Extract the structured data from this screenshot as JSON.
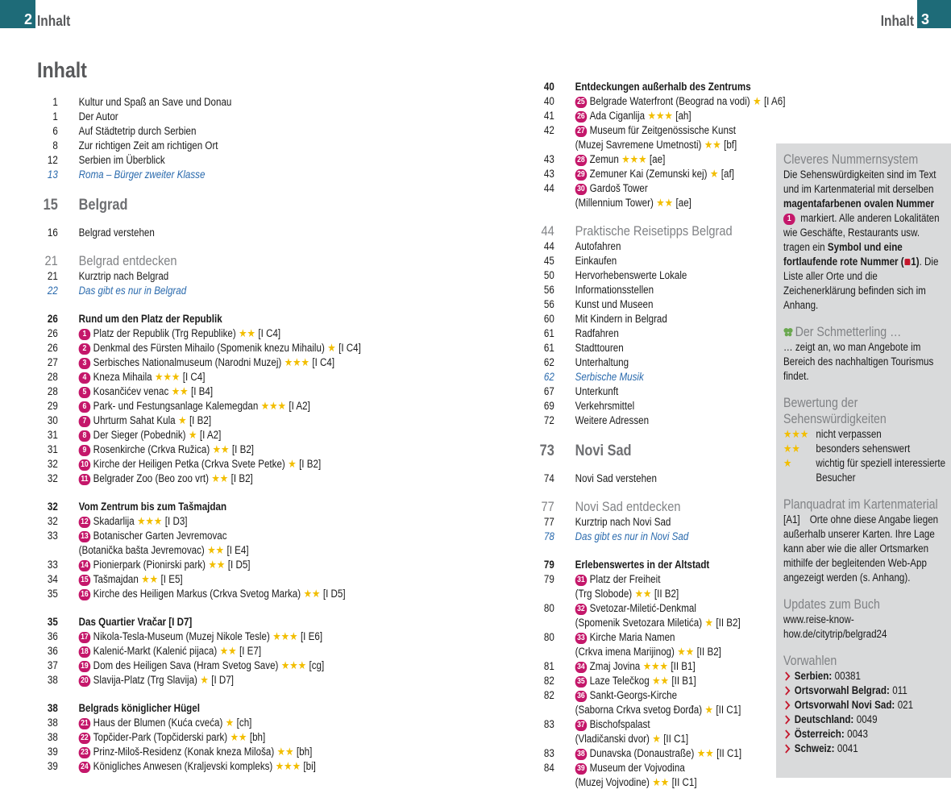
{
  "header": {
    "left": {
      "page": "2",
      "title": "Inhalt"
    },
    "right": {
      "title": "Inhalt",
      "page": "3"
    }
  },
  "toc": {
    "title": "Inhalt",
    "left": [
      {
        "page": "1",
        "text": "Kultur und Spaß an Save und Donau"
      },
      {
        "page": "1",
        "text": "Der Autor"
      },
      {
        "page": "6",
        "text": "Auf Städtetrip durch Serbien"
      },
      {
        "page": "8",
        "text": "Zur richtigen Zeit am richtigen Ort"
      },
      {
        "page": "12",
        "text": "Serbien im Überblick"
      },
      {
        "page": "13",
        "italic": "Roma – Bürger zweiter Klasse"
      },
      {
        "page": "15",
        "h1": "Belgrad"
      },
      {
        "page": "16",
        "text": "Belgrad verstehen"
      },
      {
        "page": "21",
        "h2": "Belgrad entdecken"
      },
      {
        "page": "21",
        "text": "Kurztrip nach Belgrad"
      },
      {
        "page": "22",
        "italic": "Das gibt es nur in Belgrad"
      },
      {
        "page": "26",
        "bold": "Rund um den Platz der Republik"
      },
      {
        "page": "26",
        "num": "1",
        "name": "Platz der Republik (Trg Republike)",
        "stars": "★★",
        "ref": "[I C4]"
      },
      {
        "page": "26",
        "num": "2",
        "name": "Denkmal des Fürsten Mihailo (Spomenik knezu Mihailu)",
        "stars": "★",
        "ref": "[I C4]"
      },
      {
        "page": "27",
        "num": "3",
        "name": "Serbisches Nationalmuseum (Narodni Muzej)",
        "stars": "★★★",
        "ref": "[I C4]"
      },
      {
        "page": "28",
        "num": "4",
        "name": "Kneza Mihaila",
        "stars": "★★★",
        "ref": "[I C4]"
      },
      {
        "page": "28",
        "num": "5",
        "name": "Kosančićev venac",
        "stars": "★★",
        "ref": "[I B4]"
      },
      {
        "page": "29",
        "num": "6",
        "name": "Park- und Festungsanlage Kalemegdan",
        "stars": "★★★",
        "ref": "[I A2]"
      },
      {
        "page": "30",
        "num": "7",
        "name": "Uhrturm Sahat Kula",
        "stars": "★",
        "ref": "[I B2]"
      },
      {
        "page": "31",
        "num": "8",
        "name": "Der Sieger (Pobednik)",
        "stars": "★",
        "ref": "[I A2]"
      },
      {
        "page": "31",
        "num": "9",
        "name": "Rosenkirche (Crkva Ružica)",
        "stars": "★★",
        "ref": "[I B2]"
      },
      {
        "page": "32",
        "num": "10",
        "name": "Kirche der Heiligen Petka (Crkva Svete Petke)",
        "stars": "★",
        "ref": "[I B2]"
      },
      {
        "page": "32",
        "num": "11",
        "name": "Belgrader Zoo (Beo zoo vrt)",
        "stars": "★★",
        "ref": "[I B2]"
      },
      {
        "page": "32",
        "bold": "Vom Zentrum bis zum Tašmajdan"
      },
      {
        "page": "32",
        "num": "12",
        "name": "Skadarlija",
        "stars": "★★★",
        "ref": "[I D3]"
      },
      {
        "page": "33",
        "num": "13",
        "name": "Botanischer Garten Jevremovac",
        "name2": "(Botanička bašta Jevremovac)",
        "stars": "★★",
        "ref": "[I E4]"
      },
      {
        "page": "33",
        "num": "14",
        "name": "Pionierpark (Pionirski park)",
        "stars": "★★",
        "ref": "[I D5]"
      },
      {
        "page": "34",
        "num": "15",
        "name": "Tašmajdan",
        "stars": "★★",
        "ref": "[I E5]"
      },
      {
        "page": "35",
        "num": "16",
        "name": "Kirche des Heiligen Markus (Crkva Svetog Marka)",
        "stars": "★★",
        "ref": "[I D5]"
      },
      {
        "page": "35",
        "bold": "Das Quartier Vračar [I D7]"
      },
      {
        "page": "36",
        "num": "17",
        "name": "Nikola-Tesla-Museum (Muzej Nikole Tesle)",
        "stars": "★★★",
        "ref": "[I E6]"
      },
      {
        "page": "36",
        "num": "18",
        "name": "Kalenić-Markt (Kalenić pijaca)",
        "stars": "★★",
        "ref": "[I E7]"
      },
      {
        "page": "37",
        "num": "19",
        "name": "Dom des Heiligen Sava (Hram Svetog Save)",
        "stars": "★★★",
        "ref": "[cg]"
      },
      {
        "page": "38",
        "num": "20",
        "name": "Slavija-Platz (Trg Slavija)",
        "stars": "★",
        "ref": "[I D7]"
      },
      {
        "page": "38",
        "bold": "Belgrads königlicher Hügel"
      },
      {
        "page": "38",
        "num": "21",
        "name": "Haus der Blumen (Kuća cveća)",
        "stars": "★",
        "ref": "[ch]"
      },
      {
        "page": "38",
        "num": "22",
        "name": "Topčider-Park (Topčiderski park)",
        "stars": "★★",
        "ref": "[bh]"
      },
      {
        "page": "39",
        "num": "23",
        "name": "Prinz-Miloš-Residenz (Konak kneza Miloša)",
        "stars": "★★",
        "ref": "[bh]"
      },
      {
        "page": "39",
        "num": "24",
        "name": "Königliches Anwesen (Kraljevski kompleks)",
        "stars": "★★★",
        "ref": "[bi]"
      }
    ],
    "right": [
      {
        "page": "40",
        "bold": "Entdeckungen außerhalb des Zentrums"
      },
      {
        "page": "40",
        "num": "25",
        "name": "Belgrade Waterfront (Beograd na vodi)",
        "stars": "★",
        "ref": "[I A6]"
      },
      {
        "page": "41",
        "num": "26",
        "name": "Ada Ciganlija",
        "stars": "★★★",
        "ref": "[ah]"
      },
      {
        "page": "42",
        "num": "27",
        "name": "Museum für Zeitgenössische Kunst",
        "name2": "(Muzej Savremene Umetnosti)",
        "stars": "★★",
        "ref": "[bf]"
      },
      {
        "page": "43",
        "num": "28",
        "name": "Zemun",
        "stars": "★★★",
        "ref": "[ae]"
      },
      {
        "page": "43",
        "num": "29",
        "name": "Zemuner Kai (Zemunski kej)",
        "stars": "★",
        "ref": "[af]"
      },
      {
        "page": "44",
        "num": "30",
        "name": "Gardoš Tower",
        "name2": "(Millennium Tower)",
        "stars": "★★",
        "ref": "[ae]"
      },
      {
        "page": "44",
        "h2": "Praktische Reisetipps Belgrad"
      },
      {
        "page": "44",
        "text": "Autofahren"
      },
      {
        "page": "45",
        "text": "Einkaufen"
      },
      {
        "page": "50",
        "text": "Hervorhebenswerte Lokale"
      },
      {
        "page": "56",
        "text": "Informationsstellen"
      },
      {
        "page": "56",
        "text": "Kunst und Museen"
      },
      {
        "page": "60",
        "text": "Mit Kindern in Belgrad"
      },
      {
        "page": "61",
        "text": "Radfahren"
      },
      {
        "page": "61",
        "text": "Stadttouren"
      },
      {
        "page": "62",
        "text": "Unterhaltung"
      },
      {
        "page": "62",
        "italic": "Serbische Musik"
      },
      {
        "page": "67",
        "text": "Unterkunft"
      },
      {
        "page": "69",
        "text": "Verkehrsmittel"
      },
      {
        "page": "72",
        "text": "Weitere Adressen"
      },
      {
        "page": "73",
        "h1": "Novi Sad"
      },
      {
        "page": "74",
        "text": "Novi Sad verstehen"
      },
      {
        "page": "77",
        "h2": "Novi Sad entdecken"
      },
      {
        "page": "77",
        "text": "Kurztrip nach Novi Sad"
      },
      {
        "page": "78",
        "italic": "Das gibt es nur in Novi Sad"
      },
      {
        "page": "79",
        "bold": "Erlebenswertes in der Altstadt"
      },
      {
        "page": "79",
        "num": "31",
        "name": "Platz der Freiheit",
        "name2": "(Trg Slobode)",
        "stars": "★★",
        "ref": "[II B2]"
      },
      {
        "page": "80",
        "num": "32",
        "name": "Svetozar-Miletić-Denkmal",
        "name2": "(Spomenik Svetozara Miletića)",
        "stars": "★",
        "ref": "[II B2]"
      },
      {
        "page": "80",
        "num": "33",
        "name": "Kirche Maria Namen",
        "name2": "(Crkva imena Marijinog)",
        "stars": "★★",
        "ref": "[II B2]"
      },
      {
        "page": "81",
        "num": "34",
        "name": "Zmaj Jovina",
        "stars": "★★★",
        "ref": "[II B1]"
      },
      {
        "page": "82",
        "num": "35",
        "name": "Laze Telečkog",
        "stars": "★★",
        "ref": "[II B1]"
      },
      {
        "page": "82",
        "num": "36",
        "name": "Sankt-Georgs-Kirche",
        "name2": "(Saborna Crkva svetog Đorđa)",
        "stars": "★",
        "ref": "[II C1]"
      },
      {
        "page": "83",
        "num": "37",
        "name": "Bischofspalast",
        "name2": "(Vladičanski dvor)",
        "stars": "★",
        "ref": "[II C1]"
      },
      {
        "page": "83",
        "num": "38",
        "name": "Dunavska (Donaustraße)",
        "stars": "★★",
        "ref": "[II C1]"
      },
      {
        "page": "84",
        "num": "39",
        "name": "Museum der Vojvodina",
        "name2": "(Muzej Vojvodine)",
        "stars": "★★",
        "ref": "[II C1]"
      }
    ]
  },
  "sidebar": {
    "numbering": {
      "title": "Cleveres Nummernsystem",
      "text": [
        "Die Sehenswürdigkeiten sind im Text und im Kartenmaterial mit derselben ",
        "magentafarbenen ovalen Nummer",
        "1",
        " markiert. Alle anderen Lokalitäten wie Geschäfte, Restaurants usw. tragen ein ",
        "Symbol und eine fortlaufende rote Nummer (",
        "1)",
        ". Die Liste aller Orte und die Zeichenerklärung befinden sich im Anhang."
      ]
    },
    "butterfly": {
      "title": "Der Schmetterling …",
      "text": "… zeigt an, wo man Angebote im Bereich des nachhaltigen Tourismus findet."
    },
    "rating": {
      "title": "Bewertung der Sehenswürdigkeiten",
      "items": [
        {
          "stars": "★★★",
          "text": "nicht verpassen"
        },
        {
          "stars": "★★",
          "text": "besonders sehenswert"
        },
        {
          "stars": "★",
          "text": "wichtig für speziell interessierte Besucher"
        }
      ]
    },
    "grid": {
      "title": "Planquadrat im Kartenmaterial",
      "ref": "[A1]",
      "text": "Orte ohne diese Angabe liegen außerhalb unserer Karten. Ihre Lage kann aber wie die aller Ortsmarken mithilfe der begleitenden Web-App angezeigt werden (s. Anhang)."
    },
    "updates": {
      "title": "Updates zum Buch",
      "url": "www.reise-know-how.de/citytrip/belgrad24"
    },
    "codes": {
      "title": "Vorwahlen",
      "items": [
        {
          "label": "Serbien:",
          "value": "00381"
        },
        {
          "label": "Ortsvorwahl Belgrad:",
          "value": "011"
        },
        {
          "label": "Ortsvorwahl Novi Sad:",
          "value": "021"
        },
        {
          "label": "Deutschland:",
          "value": "0049"
        },
        {
          "label": "Österreich:",
          "value": "0043"
        },
        {
          "label": "Schweiz:",
          "value": "0041"
        }
      ]
    }
  }
}
